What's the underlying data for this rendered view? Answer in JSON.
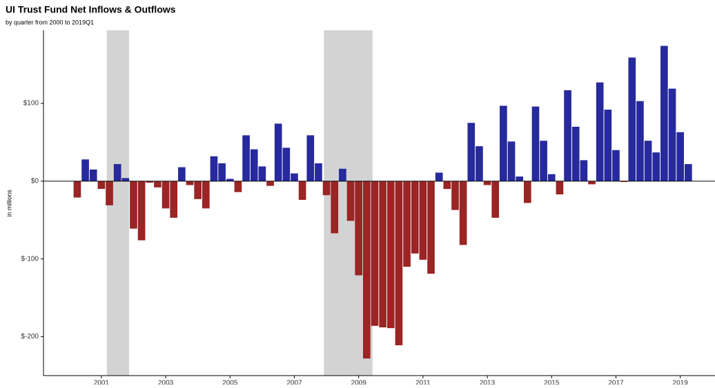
{
  "chart_data": {
    "type": "bar",
    "title": "UI Trust Fund Net Inflows & Outflows",
    "subtitle": "by quarter from 2000 to 2019Q1",
    "y_label": "in millions",
    "x": [
      2000.25,
      2000.5,
      2000.75,
      2001,
      2001.25,
      2001.5,
      2001.75,
      2002,
      2002.25,
      2002.5,
      2002.75,
      2003,
      2003.25,
      2003.5,
      2003.75,
      2004,
      2004.25,
      2004.5,
      2004.75,
      2005,
      2005.25,
      2005.5,
      2005.75,
      2006,
      2006.25,
      2006.5,
      2006.75,
      2007,
      2007.25,
      2007.5,
      2007.75,
      2008,
      2008.25,
      2008.5,
      2008.75,
      2009,
      2009.25,
      2009.5,
      2009.75,
      2010,
      2010.25,
      2010.5,
      2010.75,
      2011,
      2011.25,
      2011.5,
      2011.75,
      2012,
      2012.25,
      2012.5,
      2012.75,
      2013,
      2013.25,
      2013.5,
      2013.75,
      2014,
      2014.25,
      2014.5,
      2014.75,
      2015,
      2015.25,
      2015.5,
      2015.75,
      2016,
      2016.25,
      2016.5,
      2016.75,
      2017,
      2017.25,
      2017.5,
      2017.75,
      2018,
      2018.25,
      2018.5,
      2018.75,
      2019,
      2019.25
    ],
    "values": [
      -21,
      28,
      15,
      -10,
      -31,
      22,
      4,
      -61,
      -76,
      -2,
      -8,
      -35,
      -47,
      18,
      -5,
      -23,
      -35,
      32,
      23,
      3,
      -14,
      59,
      41,
      19,
      -6,
      74,
      43,
      10,
      -24,
      59,
      23,
      -18,
      -67,
      16,
      -51,
      -121,
      -228,
      -186,
      -188,
      -189,
      -211,
      -110,
      -93,
      -101,
      -119,
      11,
      -10,
      -37,
      -82,
      75,
      45,
      -5,
      -47,
      97,
      51,
      6,
      -28,
      96,
      52,
      9,
      -17,
      117,
      70,
      27,
      -4,
      127,
      92,
      40,
      -1,
      159,
      103,
      52,
      37,
      174,
      119,
      63,
      22
    ],
    "color_positive": "#262a9c",
    "color_negative": "#9b2424",
    "recessions": [
      [
        2001.17,
        2001.86
      ],
      [
        2007.92,
        2009.43
      ]
    ],
    "recession_color": "#d3d3d3",
    "xlim": [
      1999.2,
      2020.08
    ],
    "xticks": [
      2001,
      2003,
      2005,
      2007,
      2009,
      2011,
      2013,
      2015,
      2017,
      2019
    ],
    "ylim": [
      -250,
      194
    ],
    "yticks": [
      {
        "value": -200,
        "label": "$-200"
      },
      {
        "value": -100,
        "label": "$-100"
      },
      {
        "value": 0,
        "label": "$0"
      },
      {
        "value": 100,
        "label": "$100"
      }
    ]
  }
}
